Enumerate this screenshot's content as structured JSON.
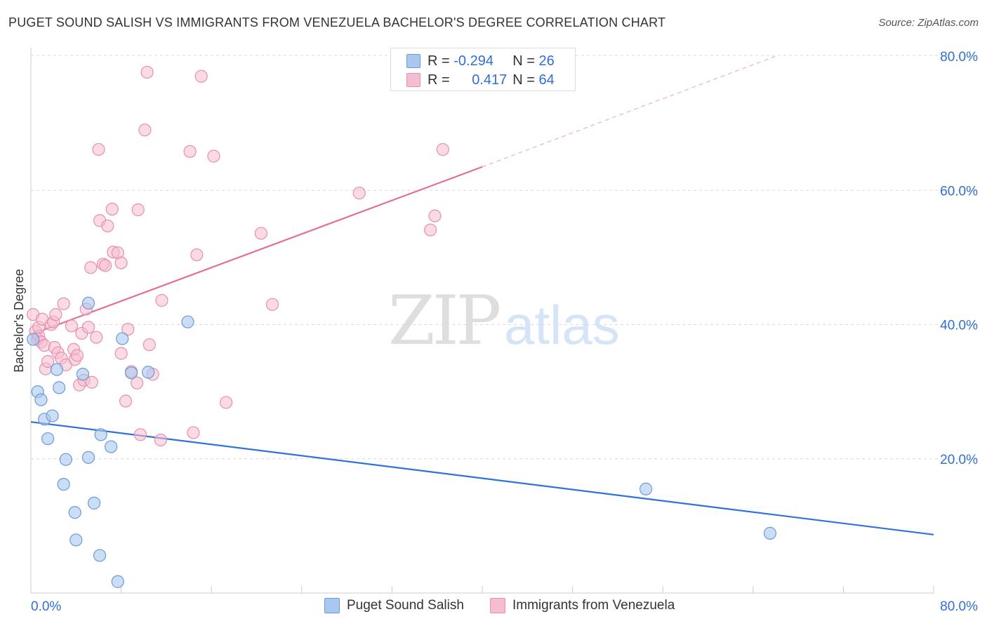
{
  "title": "PUGET SOUND SALISH VS IMMIGRANTS FROM VENEZUELA BACHELOR'S DEGREE CORRELATION CHART",
  "source": "Source: ZipAtlas.com",
  "watermark": {
    "zip": "ZIP",
    "atlas": "atlas"
  },
  "colors": {
    "blue_fill": "#aac8ef",
    "blue_stroke": "#6a9ad9",
    "blue_line": "#2f73d8",
    "pink_fill": "#f5bed0",
    "pink_stroke": "#e88fab",
    "pink_line": "#e26f98",
    "value_text": "#2f6fd6"
  },
  "legend": {
    "rows": [
      {
        "r_label": "R = ",
        "r_value": "-0.294",
        "n_label": "N = ",
        "n_value": "26"
      },
      {
        "r_label": "R = ",
        "r_value": "0.417",
        "n_label": "N = ",
        "n_value": "64"
      }
    ]
  },
  "chart_data": {
    "type": "scatter",
    "title": "PUGET SOUND SALISH VS IMMIGRANTS FROM VENEZUELA BACHELOR'S DEGREE CORRELATION CHART",
    "xlabel": "",
    "ylabel": "Bachelor's Degree",
    "xlim": [
      0,
      80
    ],
    "ylim": [
      0,
      80
    ],
    "x_tick_labels": [
      "0.0%",
      "80.0%"
    ],
    "y_ticks": [
      20,
      40,
      60,
      80
    ],
    "y_tick_labels": [
      "20.0%",
      "40.0%",
      "60.0%",
      "80.0%"
    ],
    "grid": true,
    "legend_position": "bottom",
    "series": [
      {
        "name": "Puget Sound Salish",
        "color": "#aac8ef",
        "r": -0.294,
        "n": 26,
        "trend": {
          "x": [
            0,
            80
          ],
          "y": [
            25.5,
            8.7
          ]
        },
        "points": [
          [
            0.2,
            37.8
          ],
          [
            0.6,
            30.0
          ],
          [
            0.9,
            28.8
          ],
          [
            1.2,
            25.9
          ],
          [
            1.5,
            23.0
          ],
          [
            1.9,
            26.4
          ],
          [
            2.3,
            33.3
          ],
          [
            2.5,
            30.6
          ],
          [
            3.1,
            19.9
          ],
          [
            2.9,
            16.2
          ],
          [
            3.9,
            12.0
          ],
          [
            4.0,
            7.9
          ],
          [
            4.6,
            32.6
          ],
          [
            5.1,
            43.2
          ],
          [
            5.1,
            20.2
          ],
          [
            5.6,
            13.4
          ],
          [
            6.1,
            5.6
          ],
          [
            6.2,
            23.6
          ],
          [
            7.1,
            21.8
          ],
          [
            7.7,
            1.7
          ],
          [
            8.1,
            37.9
          ],
          [
            8.9,
            32.8
          ],
          [
            10.4,
            32.9
          ],
          [
            13.9,
            40.4
          ],
          [
            54.5,
            15.5
          ],
          [
            65.5,
            8.9
          ]
        ]
      },
      {
        "name": "Immigrants from Venezuela",
        "color": "#f5bed0",
        "r": 0.417,
        "n": 64,
        "trend": {
          "x": [
            0,
            40
          ],
          "y": [
            38.5,
            63.5
          ]
        },
        "trend_extension": {
          "x": [
            40,
            66
          ],
          "y": [
            63.5,
            80
          ]
        },
        "points": [
          [
            0.2,
            41.5
          ],
          [
            0.4,
            39.0
          ],
          [
            0.6,
            37.8
          ],
          [
            0.7,
            38.3
          ],
          [
            0.7,
            39.6
          ],
          [
            0.9,
            37.4
          ],
          [
            1.0,
            40.8
          ],
          [
            1.2,
            36.9
          ],
          [
            1.3,
            33.4
          ],
          [
            1.5,
            34.5
          ],
          [
            1.8,
            40.0
          ],
          [
            2.0,
            40.4
          ],
          [
            2.1,
            36.6
          ],
          [
            2.2,
            41.5
          ],
          [
            2.4,
            35.8
          ],
          [
            2.7,
            35.0
          ],
          [
            2.9,
            43.1
          ],
          [
            3.1,
            34.0
          ],
          [
            3.6,
            39.8
          ],
          [
            3.8,
            36.3
          ],
          [
            3.9,
            34.8
          ],
          [
            4.1,
            35.4
          ],
          [
            4.3,
            31.0
          ],
          [
            4.5,
            38.7
          ],
          [
            4.7,
            31.7
          ],
          [
            4.9,
            42.3
          ],
          [
            5.1,
            39.6
          ],
          [
            5.3,
            48.5
          ],
          [
            5.4,
            31.4
          ],
          [
            5.8,
            38.1
          ],
          [
            6.0,
            66.1
          ],
          [
            6.1,
            55.5
          ],
          [
            6.4,
            49.0
          ],
          [
            6.6,
            48.8
          ],
          [
            6.8,
            54.7
          ],
          [
            7.2,
            57.2
          ],
          [
            7.3,
            50.8
          ],
          [
            7.7,
            50.7
          ],
          [
            8.0,
            35.7
          ],
          [
            8.0,
            49.2
          ],
          [
            8.4,
            28.6
          ],
          [
            8.6,
            39.3
          ],
          [
            8.9,
            33.0
          ],
          [
            9.4,
            31.3
          ],
          [
            9.5,
            57.1
          ],
          [
            9.7,
            23.6
          ],
          [
            10.1,
            69.0
          ],
          [
            10.3,
            77.6
          ],
          [
            10.5,
            37.0
          ],
          [
            10.8,
            32.6
          ],
          [
            11.5,
            22.8
          ],
          [
            11.6,
            43.6
          ],
          [
            14.1,
            65.8
          ],
          [
            14.4,
            23.9
          ],
          [
            14.7,
            50.4
          ],
          [
            15.1,
            77.0
          ],
          [
            16.2,
            65.1
          ],
          [
            17.3,
            28.4
          ],
          [
            20.4,
            53.6
          ],
          [
            21.4,
            43.0
          ],
          [
            29.1,
            59.6
          ],
          [
            35.4,
            54.1
          ],
          [
            35.8,
            56.2
          ],
          [
            36.5,
            66.1
          ]
        ]
      }
    ]
  }
}
